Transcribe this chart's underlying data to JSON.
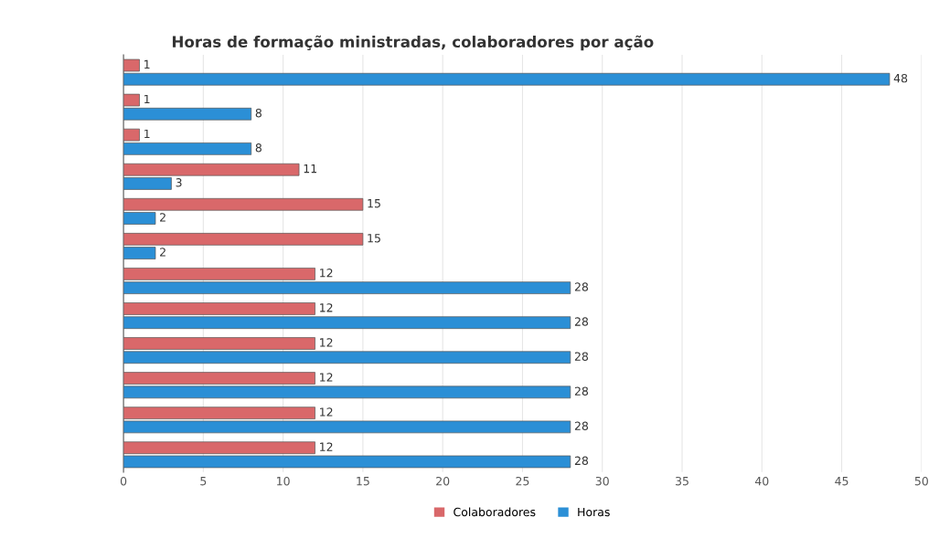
{
  "chart_data": {
    "type": "bar",
    "orientation": "horizontal",
    "title": "Horas de formação ministradas, colaboradores por ação",
    "categories": [
      null,
      null,
      null,
      null,
      null,
      null,
      null,
      null,
      null,
      null,
      null,
      null
    ],
    "series": [
      {
        "name": "Colaboradores",
        "color": "#d9686a",
        "values": [
          1,
          1,
          1,
          11,
          15,
          15,
          12,
          12,
          12,
          12,
          12,
          12
        ]
      },
      {
        "name": "Horas",
        "color": "#2b8fd6",
        "values": [
          48,
          8,
          8,
          3,
          2,
          2,
          28,
          28,
          28,
          28,
          28,
          28
        ]
      }
    ],
    "xlim": [
      0,
      50
    ],
    "xticks": [
      0,
      5,
      10,
      15,
      20,
      25,
      30,
      35,
      40,
      45,
      50
    ],
    "data_labels": true,
    "grid": "x",
    "legend": "bottom"
  }
}
